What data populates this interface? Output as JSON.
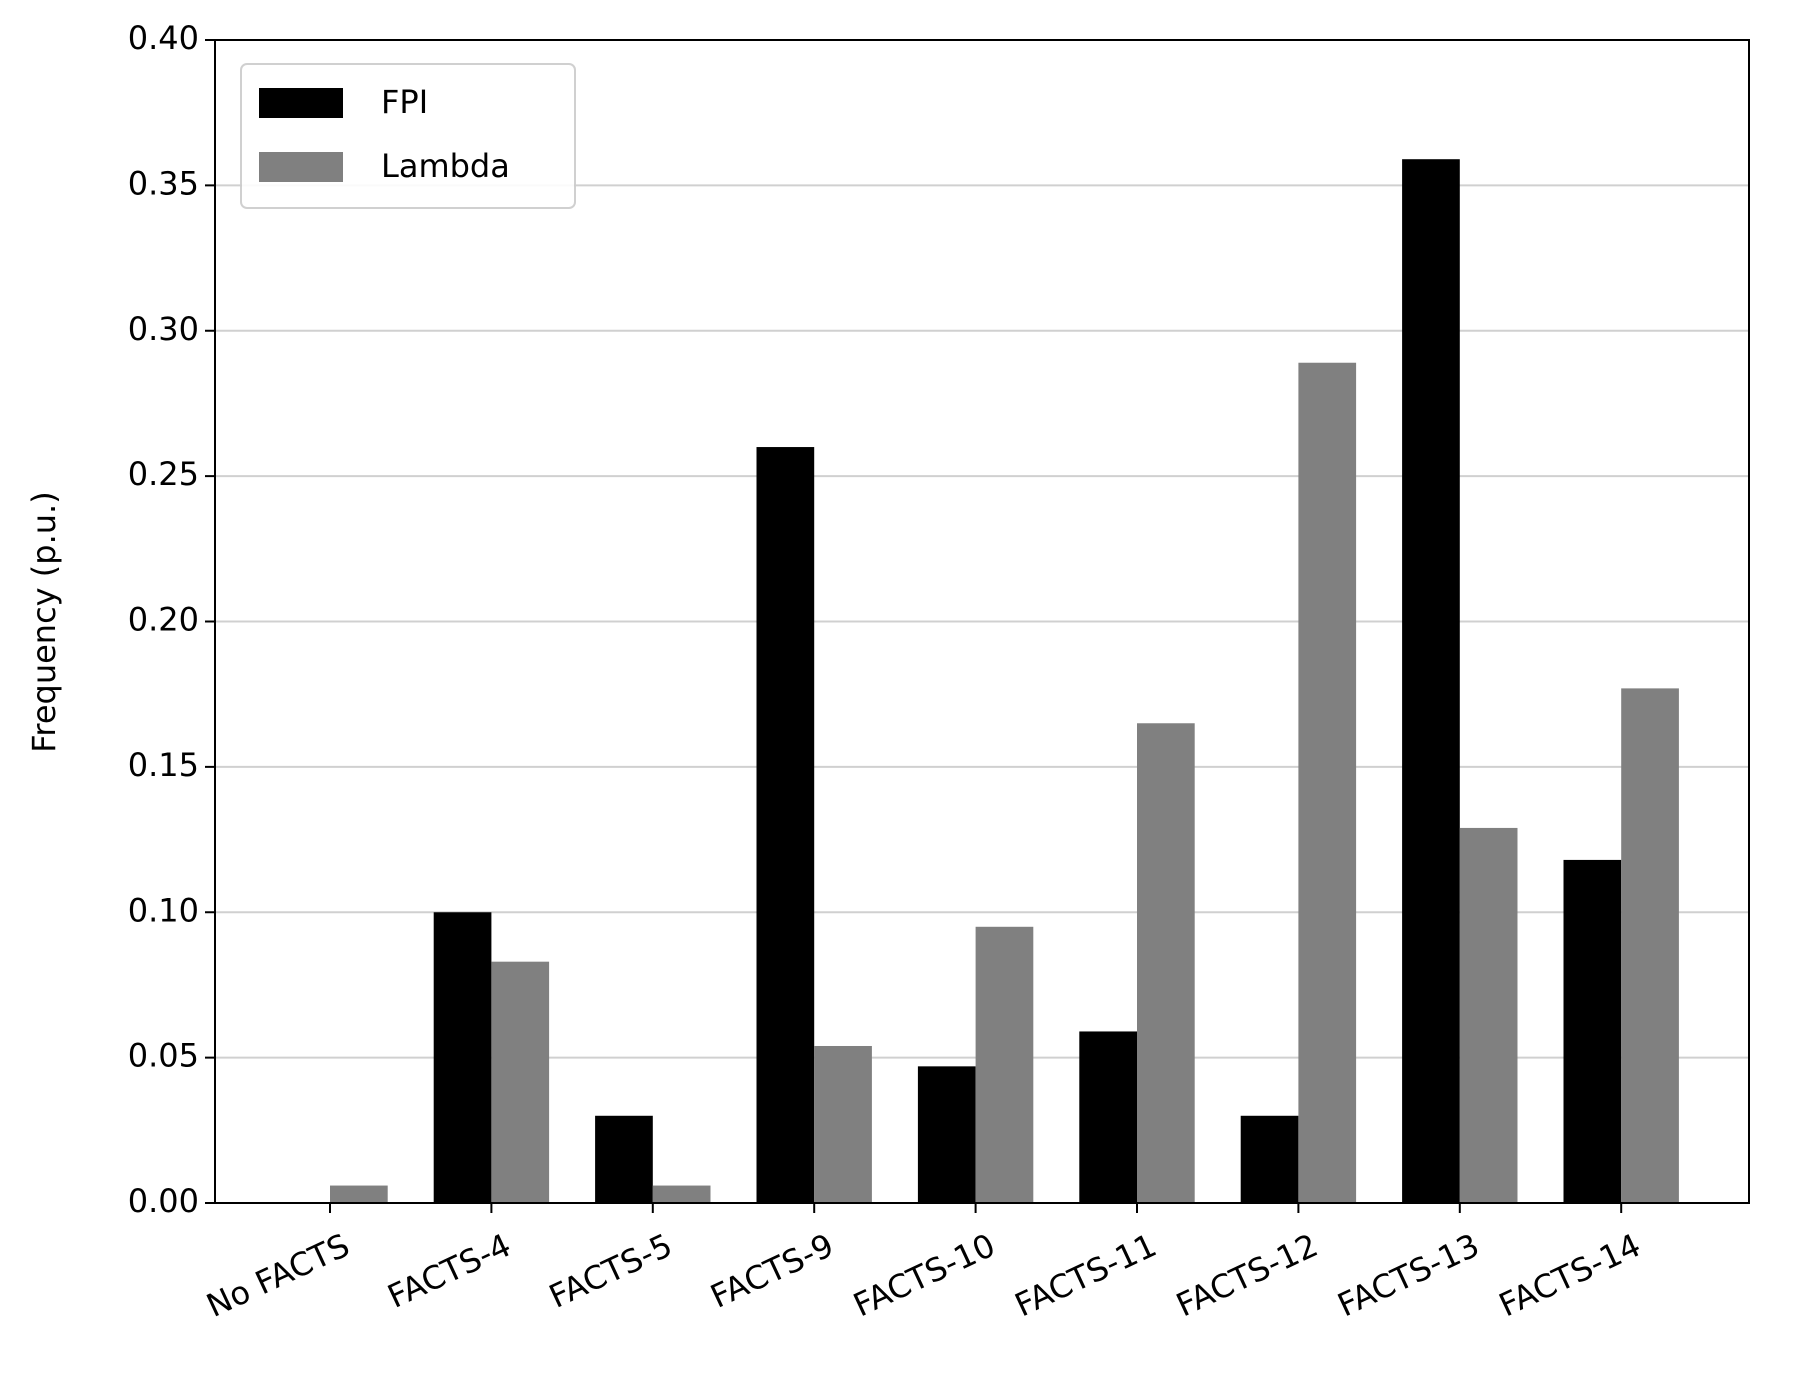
{
  "chart_data": {
    "type": "bar",
    "y_label": "Frequency (p.u.)",
    "categories": [
      "No FACTS",
      "FACTS-4",
      "FACTS-5",
      "FACTS-9",
      "FACTS-10",
      "FACTS-11",
      "FACTS-12",
      "FACTS-13",
      "FACTS-14"
    ],
    "series": [
      {
        "name": "FPI",
        "color": "#000000",
        "values": [
          0,
          0.1,
          0.03,
          0.26,
          0.047,
          0.059,
          0.03,
          0.359,
          0.118
        ]
      },
      {
        "name": "Lambda",
        "color": "#808080",
        "values": [
          0.006,
          0.083,
          0.006,
          0.054,
          0.095,
          0.165,
          0.289,
          0.129,
          0.177
        ]
      }
    ],
    "ylim": [
      0,
      0.4
    ],
    "yticks": [
      {
        "value": 0,
        "label": "0.00"
      },
      {
        "value": 0.05,
        "label": "0.05"
      },
      {
        "value": 0.1,
        "label": "0.10"
      },
      {
        "value": 0.15,
        "label": "0.15"
      },
      {
        "value": 0.2,
        "label": "0.20"
      },
      {
        "value": 0.25,
        "label": "0.25"
      },
      {
        "value": 0.3,
        "label": "0.30"
      },
      {
        "value": 0.35,
        "label": "0.35"
      },
      {
        "value": 0.4,
        "label": "0.40"
      }
    ],
    "grid": true,
    "legend": "upper left"
  }
}
